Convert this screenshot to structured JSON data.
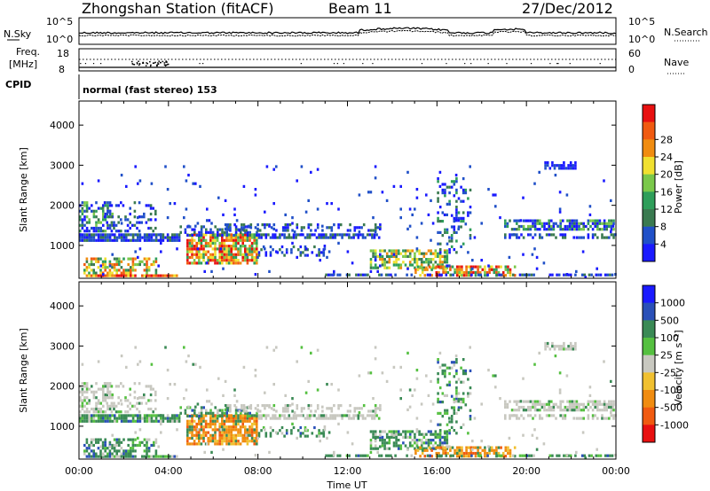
{
  "header": {
    "station": "Zhongshan Station (fitACF)",
    "beam": "Beam 11",
    "date": "27/Dec/2012"
  },
  "top_panel": {
    "left_label": "N.Sky",
    "right_label": "N.Search",
    "left_ticks": [
      "10^5",
      "10^0"
    ],
    "right_ticks": [
      "10^5",
      "10^0"
    ]
  },
  "freq_panel": {
    "left_label_1": "Freq.",
    "left_label_2": "[MHz]",
    "left_ticks": [
      "18",
      "8"
    ],
    "right_label": "Nave",
    "right_ticks": [
      "60",
      "0"
    ],
    "cpid_label": "CPID",
    "mode_text": "normal (fast stereo) 153"
  },
  "colors": {
    "power_scale": [
      "#1a1aff",
      "#2050c8",
      "#3a7a50",
      "#2e9e5a",
      "#7ac84a",
      "#f0e030",
      "#f08c10",
      "#f05a10",
      "#e81010"
    ],
    "velocity_scale": [
      "#1a1aff",
      "#2a50b8",
      "#3a8a55",
      "#55c040",
      "#c8c8c0",
      "#f0c030",
      "#f08c10",
      "#f05a10",
      "#e81010"
    ]
  },
  "chart_data": [
    {
      "type": "heatmap",
      "title": "",
      "ylabel": "Slant Range [km]",
      "xlabel": "",
      "ylim": [
        180,
        4600
      ],
      "xlim": [
        "00:00",
        "24:00"
      ],
      "y_ticks": [
        "1000",
        "2000",
        "3000",
        "4000"
      ],
      "colorbar_label": "Power [dB]",
      "colorbar_ticks": [
        "4",
        "8",
        "12",
        "16",
        "20",
        "24",
        "28"
      ]
    },
    {
      "type": "heatmap",
      "title": "",
      "ylabel": "Slant Range [km]",
      "xlabel": "Time UT",
      "ylim": [
        180,
        4600
      ],
      "xlim": [
        "00:00",
        "24:00"
      ],
      "x_ticks": [
        "00:00",
        "04:00",
        "08:00",
        "12:00",
        "16:00",
        "20:00",
        "00:00"
      ],
      "y_ticks": [
        "1000",
        "2000",
        "3000",
        "4000"
      ],
      "colorbar_label": "Velocity [m s⁻¹]",
      "colorbar_ticks": [
        "1000",
        "500",
        "100",
        "25",
        "-25",
        "-100",
        "-500",
        "-1000"
      ]
    }
  ]
}
